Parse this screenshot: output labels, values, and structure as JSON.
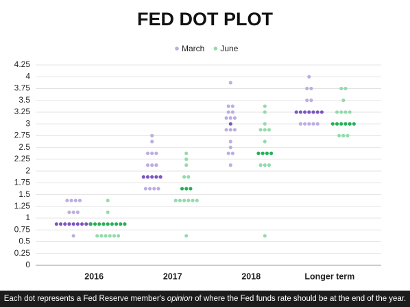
{
  "chart_data": {
    "type": "dot",
    "title": "FED DOT PLOT",
    "categories": [
      "2016",
      "2017",
      "2018",
      "Longer term"
    ],
    "series": [
      {
        "name": "March",
        "color": "#bcaee3",
        "median_color": "#7c55c4",
        "medians": [
          0.875,
          1.875,
          3.0,
          3.25
        ],
        "values": [
          [
            1.375,
            1.375,
            1.375,
            1.375,
            1.125,
            1.125,
            1.125,
            0.875,
            0.875,
            0.875,
            0.875,
            0.875,
            0.875,
            0.875,
            0.875,
            0.875,
            0.625
          ],
          [
            2.75,
            2.625,
            2.375,
            2.375,
            2.375,
            2.125,
            2.125,
            2.125,
            1.875,
            1.875,
            1.875,
            1.875,
            1.875,
            1.625,
            1.625,
            1.625,
            1.625
          ],
          [
            3.875,
            3.375,
            3.375,
            3.25,
            3.25,
            3.125,
            3.125,
            3.125,
            3.0,
            2.875,
            2.875,
            2.875,
            2.625,
            2.5,
            2.375,
            2.375,
            2.125
          ],
          [
            4.0,
            3.75,
            3.75,
            3.5,
            3.5,
            3.25,
            3.25,
            3.25,
            3.25,
            3.25,
            3.25,
            3.25,
            3.0,
            3.0,
            3.0,
            3.0,
            3.0
          ]
        ]
      },
      {
        "name": "June",
        "color": "#93dbab",
        "median_color": "#25b058",
        "medians": [
          0.875,
          1.625,
          2.375,
          3.0
        ],
        "values": [
          [
            1.375,
            1.125,
            0.875,
            0.875,
            0.875,
            0.875,
            0.875,
            0.875,
            0.875,
            0.875,
            0.875,
            0.625,
            0.625,
            0.625,
            0.625,
            0.625,
            0.625
          ],
          [
            2.375,
            2.25,
            2.125,
            1.875,
            1.875,
            1.625,
            1.625,
            1.625,
            1.375,
            1.375,
            1.375,
            1.375,
            1.375,
            1.375,
            0.625
          ],
          [
            3.375,
            3.25,
            3.0,
            2.875,
            2.875,
            2.875,
            2.625,
            2.375,
            2.375,
            2.375,
            2.375,
            2.125,
            2.125,
            2.125,
            0.625
          ],
          [
            3.75,
            3.75,
            3.5,
            3.25,
            3.25,
            3.25,
            3.25,
            3.0,
            3.0,
            3.0,
            3.0,
            3.0,
            3.0,
            2.75,
            2.75,
            2.75
          ]
        ]
      }
    ],
    "ylim": [
      0,
      4.25
    ],
    "yticks": [
      0,
      0.25,
      0.5,
      0.75,
      1,
      1.25,
      1.5,
      1.75,
      2,
      2.25,
      2.5,
      2.75,
      3,
      3.25,
      3.5,
      3.75,
      4,
      4.25
    ],
    "grid": true,
    "legend": "top",
    "footnote": [
      "Each dot represents a Fed Reserve member's ",
      "opinion",
      " of where the Fed funds rate should be at the end of the year."
    ]
  }
}
